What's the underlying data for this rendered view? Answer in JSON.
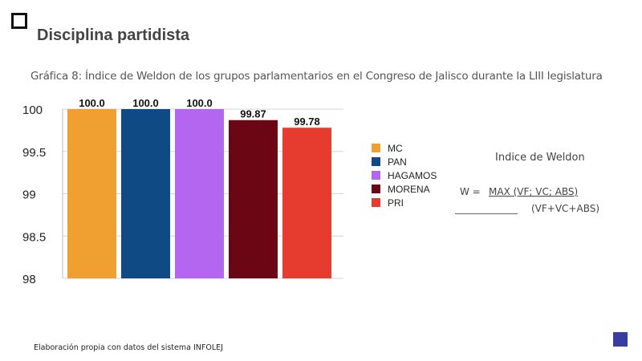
{
  "slide": {
    "title": "Disciplina partidista",
    "caption": "Gráfica 8: Índice de Weldon de los grupos parlamentarios en el Congreso de Jalisco durante la LIII legislatura",
    "source": "Elaboración propia con datos  del sistema INFOLEJ",
    "accent_color": "#3a3da0"
  },
  "formula": {
    "title": "Indice de Weldon",
    "lhs": "W =",
    "numerator": "MAX (VF; VC; ABS)",
    "denominator": "(VF+VC+ABS)"
  },
  "chart_data": {
    "type": "bar",
    "title": "",
    "xlabel": "",
    "ylabel": "",
    "categories": [
      "MC",
      "PAN",
      "HAGAMOS",
      "MORENA",
      "PRI"
    ],
    "values": [
      100.0,
      100.0,
      100.0,
      99.87,
      99.78
    ],
    "value_labels": [
      "100.0",
      "100.0",
      "100.0",
      "99.87",
      "99.78"
    ],
    "colors": [
      "#f0a030",
      "#0f4a85",
      "#b566f0",
      "#6b0614",
      "#e63c30"
    ],
    "ylim": [
      98,
      100
    ],
    "yticks": [
      "98",
      "98.5",
      "99",
      "99.5",
      "100"
    ],
    "ytick_values": [
      98,
      98.5,
      99,
      99.5,
      100
    ],
    "grid": true,
    "legend": "right"
  }
}
